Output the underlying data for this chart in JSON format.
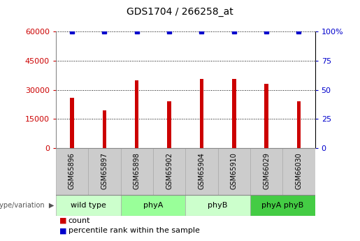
{
  "title": "GDS1704 / 266258_at",
  "samples": [
    "GSM65896",
    "GSM65897",
    "GSM65898",
    "GSM65902",
    "GSM65904",
    "GSM65910",
    "GSM66029",
    "GSM66030"
  ],
  "counts": [
    26000,
    19500,
    35000,
    24000,
    35500,
    35500,
    33000,
    24000
  ],
  "percentile_ranks": [
    100,
    100,
    100,
    100,
    100,
    100,
    100,
    100
  ],
  "groups": [
    {
      "label": "wild type",
      "color": "#ccffcc",
      "span": [
        0,
        2
      ]
    },
    {
      "label": "phyA",
      "color": "#99ff99",
      "span": [
        2,
        4
      ]
    },
    {
      "label": "phyB",
      "color": "#ccffcc",
      "span": [
        4,
        6
      ]
    },
    {
      "label": "phyA phyB",
      "color": "#44cc44",
      "span": [
        6,
        8
      ]
    }
  ],
  "bar_color": "#cc0000",
  "dot_color": "#0000cc",
  "ylim_left": [
    0,
    60000
  ],
  "ylim_right": [
    0,
    100
  ],
  "yticks_left": [
    0,
    15000,
    30000,
    45000,
    60000
  ],
  "yticks_right": [
    0,
    25,
    50,
    75,
    100
  ],
  "yticklabels_left": [
    "0",
    "15000",
    "30000",
    "45000",
    "60000"
  ],
  "yticklabels_right": [
    "0",
    "25",
    "50",
    "75",
    "100%"
  ],
  "tick_label_color_left": "#cc0000",
  "tick_label_color_right": "#0000cc",
  "grid_color": "#000000",
  "sample_bg": "#cccccc",
  "bar_width": 0.12,
  "legend_count_color": "#cc0000",
  "legend_pct_color": "#0000cc",
  "legend_count_label": "count",
  "legend_pct_label": "percentile rank within the sample",
  "genotype_label": "genotype/variation"
}
